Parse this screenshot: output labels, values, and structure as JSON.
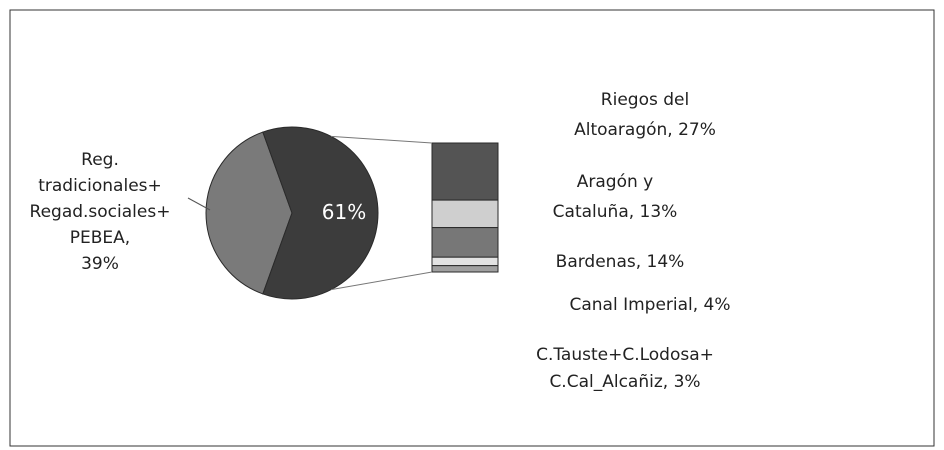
{
  "chart_data": {
    "type": "pie",
    "values": [
      39,
      61
    ],
    "value_labels": [
      "Reg.\ntradicionales+\nRegad.sociales+\nPEBEA,\n39%",
      "61%"
    ],
    "colors": [
      "#7a7a7a",
      "#3c3c3c"
    ],
    "breakdown": {
      "values": [
        27,
        13,
        14,
        4,
        3
      ],
      "value_labels": [
        "Riegos del\nAltoaragón, 27%",
        "Aragón y\nCataluña, 13%",
        "Bardenas, 14%",
        "Canal Imperial, 4%",
        "C.Tauste+C.Lodosa+\nC.Cal_Alcañiz, 3%"
      ],
      "colors": [
        "#545454",
        "#cfcfcf",
        "#777777",
        "#e2e2e2",
        "#a0a0a0"
      ]
    }
  }
}
